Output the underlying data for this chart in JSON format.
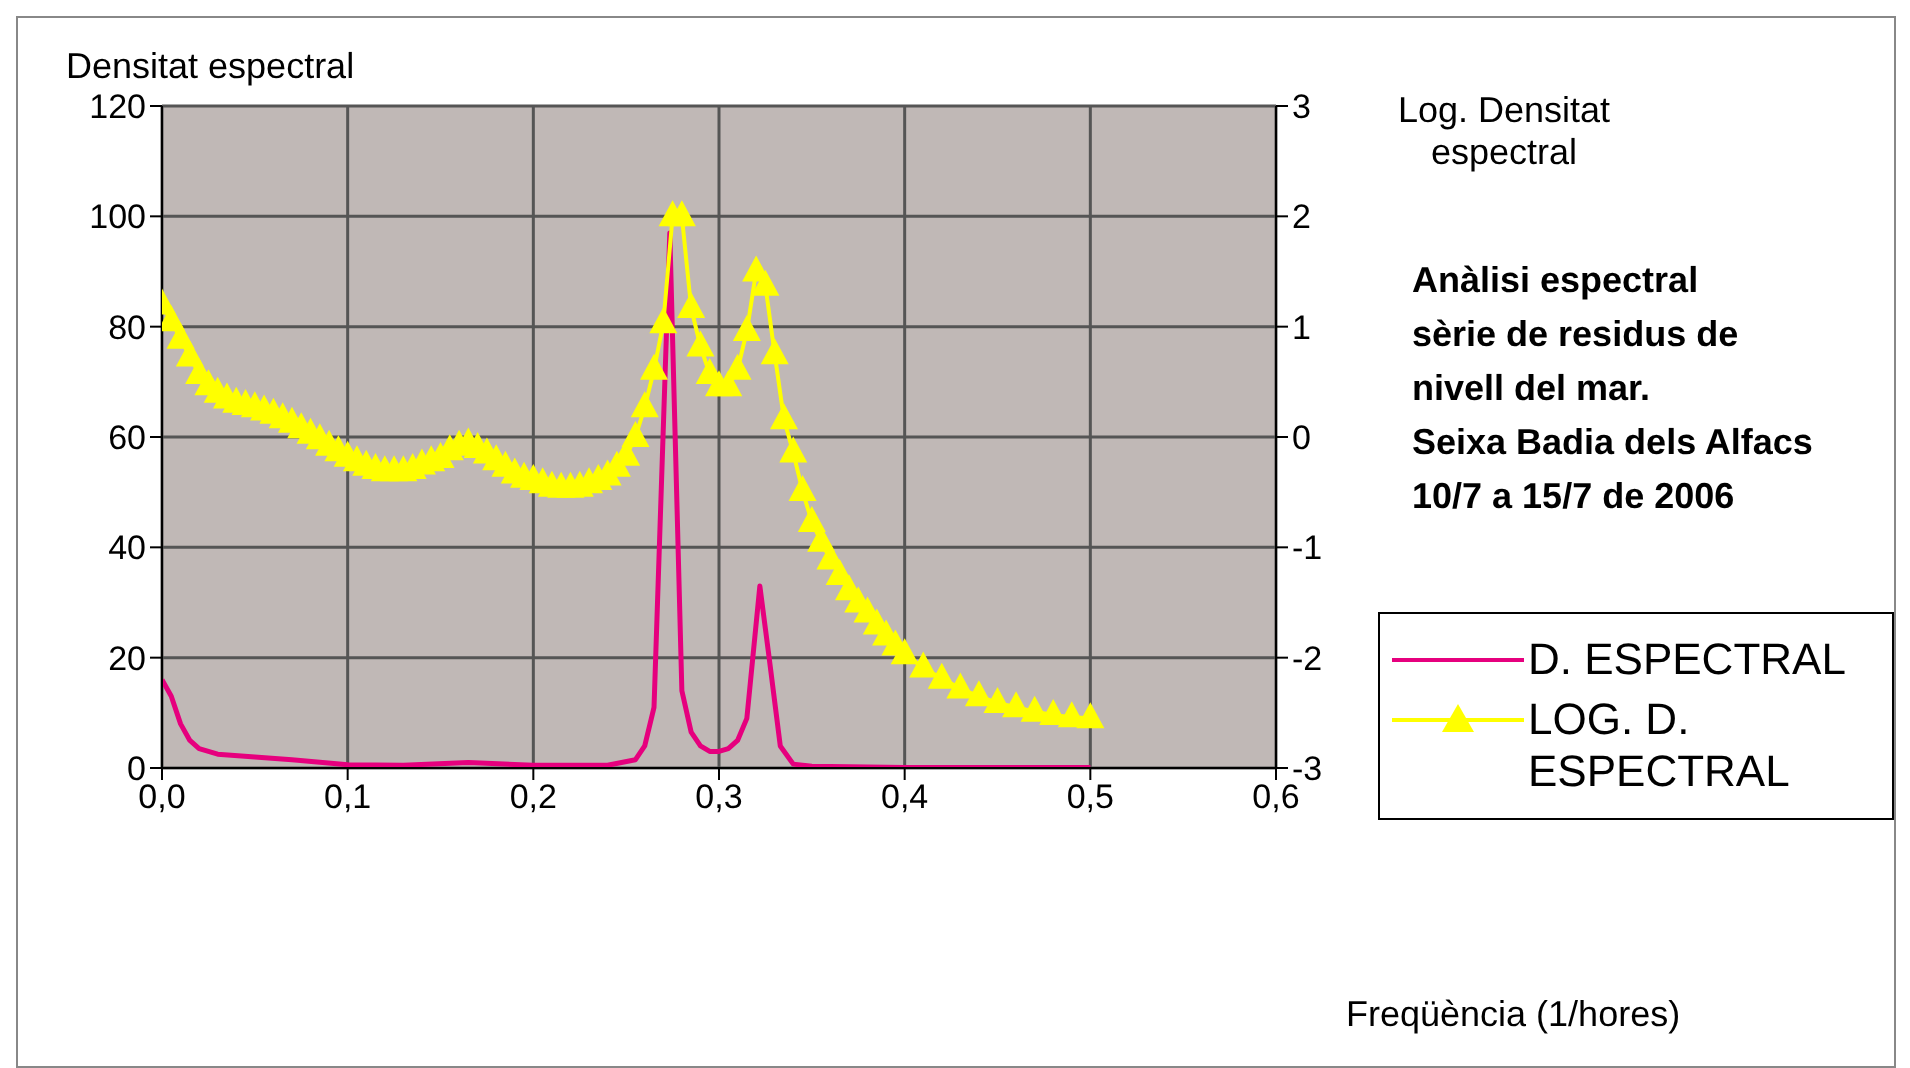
{
  "chart_data": {
    "type": "line",
    "title": "Anàlisi espectral\nsèrie de residus de\nnivell del mar.\nSeixa Badia dels Alfacs\n10/7 a 15/7 de 2006",
    "xlabel": "Freqüència (1/hores)",
    "ylabel": "Densitat espectral",
    "y2label": "Log. Densitat espectral",
    "xlim": [
      0,
      0.6
    ],
    "xticks": [
      {
        "value": 0,
        "label": "0,0"
      },
      {
        "value": 0.1,
        "label": "0,1"
      },
      {
        "value": 0.2,
        "label": "0,2"
      },
      {
        "value": 0.3,
        "label": "0,3"
      },
      {
        "value": 0.4,
        "label": "0,4"
      },
      {
        "value": 0.5,
        "label": "0,5"
      },
      {
        "value": 0.6,
        "label": "0,6"
      }
    ],
    "ylim": [
      0,
      120
    ],
    "yticks": [
      0,
      20,
      40,
      60,
      80,
      100,
      120
    ],
    "y2lim": [
      -3,
      3
    ],
    "y2ticks": [
      -3,
      -2,
      -1,
      0,
      1,
      2,
      3
    ],
    "grid": true,
    "legend": "right",
    "series": [
      {
        "name": "D. ESPECTRAL",
        "color": "#e6007e",
        "marker": "none",
        "x": [
          0,
          0.005,
          0.01,
          0.015,
          0.02,
          0.03,
          0.05,
          0.07,
          0.1,
          0.13,
          0.165,
          0.2,
          0.24,
          0.255,
          0.26,
          0.265,
          0.2735,
          0.28,
          0.285,
          0.29,
          0.295,
          0.3,
          0.305,
          0.31,
          0.315,
          0.322,
          0.327,
          0.333,
          0.34,
          0.35,
          0.4,
          0.5
        ],
        "values": [
          16,
          13,
          8,
          5,
          3.5,
          2.5,
          2,
          1.5,
          0.6,
          0.5,
          1,
          0.5,
          0.5,
          1.5,
          4,
          11,
          97,
          14,
          6.5,
          4,
          3,
          3,
          3.5,
          5,
          9,
          33,
          20,
          4,
          0.7,
          0.3,
          0.1,
          0.1
        ]
      },
      {
        "name": "LOG. D. ESPECTRAL",
        "color": "#ffff00",
        "axis": "y2",
        "marker": "triangle",
        "x": [
          0,
          0.005,
          0.01,
          0.015,
          0.02,
          0.025,
          0.03,
          0.035,
          0.04,
          0.045,
          0.05,
          0.055,
          0.06,
          0.065,
          0.07,
          0.075,
          0.08,
          0.085,
          0.09,
          0.095,
          0.1,
          0.105,
          0.11,
          0.115,
          0.12,
          0.125,
          0.13,
          0.135,
          0.14,
          0.145,
          0.15,
          0.155,
          0.16,
          0.165,
          0.17,
          0.175,
          0.18,
          0.185,
          0.19,
          0.195,
          0.2,
          0.205,
          0.21,
          0.215,
          0.22,
          0.225,
          0.23,
          0.235,
          0.24,
          0.245,
          0.25,
          0.255,
          0.26,
          0.265,
          0.27,
          0.275,
          0.28,
          0.285,
          0.29,
          0.295,
          0.3,
          0.305,
          0.31,
          0.315,
          0.32,
          0.325,
          0.33,
          0.335,
          0.34,
          0.345,
          0.35,
          0.355,
          0.36,
          0.365,
          0.37,
          0.375,
          0.38,
          0.385,
          0.39,
          0.395,
          0.4,
          0.41,
          0.42,
          0.43,
          0.44,
          0.45,
          0.46,
          0.47,
          0.48,
          0.49,
          0.5
        ],
        "values": [
          1.2,
          1.05,
          0.89,
          0.73,
          0.57,
          0.47,
          0.4,
          0.35,
          0.31,
          0.29,
          0.27,
          0.24,
          0.21,
          0.17,
          0.13,
          0.08,
          0.03,
          -0.02,
          -0.08,
          -0.13,
          -0.18,
          -0.22,
          -0.26,
          -0.29,
          -0.31,
          -0.31,
          -0.31,
          -0.29,
          -0.25,
          -0.22,
          -0.19,
          -0.12,
          -0.08,
          -0.06,
          -0.1,
          -0.15,
          -0.21,
          -0.27,
          -0.33,
          -0.37,
          -0.39,
          -0.42,
          -0.45,
          -0.46,
          -0.46,
          -0.45,
          -0.42,
          -0.39,
          -0.35,
          -0.27,
          -0.17,
          0,
          0.27,
          0.61,
          1.03,
          2,
          2,
          1.17,
          0.82,
          0.57,
          0.46,
          0.46,
          0.61,
          0.96,
          1.5,
          1.37,
          0.75,
          0.16,
          -0.14,
          -0.49,
          -0.77,
          -0.95,
          -1.11,
          -1.25,
          -1.39,
          -1.5,
          -1.59,
          -1.7,
          -1.8,
          -1.89,
          -1.97,
          -2.09,
          -2.19,
          -2.28,
          -2.35,
          -2.41,
          -2.45,
          -2.49,
          -2.52,
          -2.54,
          -2.55
        ]
      }
    ]
  }
}
